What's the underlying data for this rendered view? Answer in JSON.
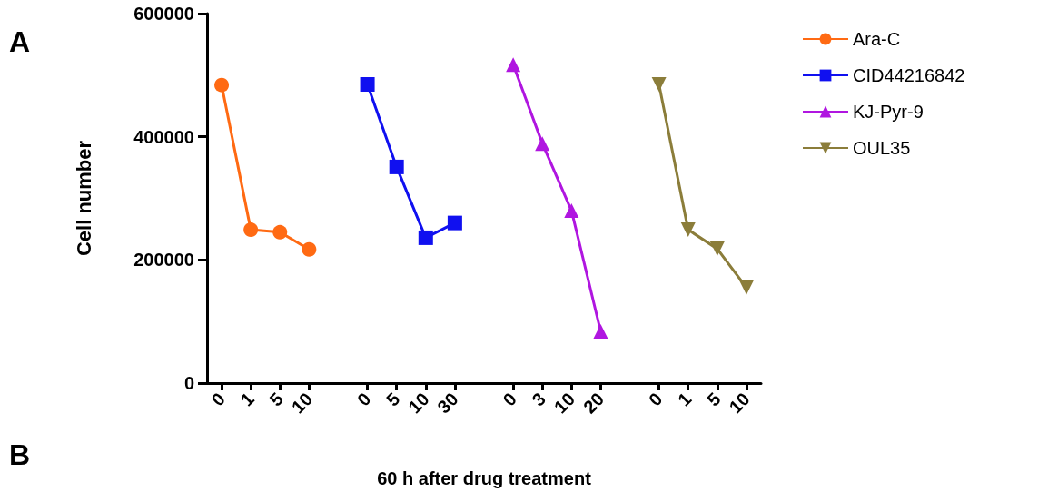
{
  "chart_data": {
    "type": "line",
    "xlabel": "60 h after drug treatment",
    "ylabel": "Cell number",
    "categories": [
      "0",
      "1",
      "5",
      "10",
      null,
      "0",
      "5",
      "10",
      "30",
      null,
      "0",
      "3",
      "10",
      "20",
      null,
      "0",
      "1",
      "5",
      "10"
    ],
    "series": [
      {
        "name": "Ara-C",
        "color": "#ff6a13",
        "marker": "circle",
        "values": [
          484000,
          249000,
          245000,
          217000,
          null,
          null,
          null,
          null,
          null,
          null,
          null,
          null,
          null,
          null,
          null,
          null,
          null,
          null,
          null
        ]
      },
      {
        "name": "CID44216842",
        "color": "#1010f0",
        "marker": "square",
        "values": [
          null,
          null,
          null,
          null,
          null,
          485000,
          351000,
          236000,
          260000,
          null,
          null,
          null,
          null,
          null,
          null,
          null,
          null,
          null,
          null
        ]
      },
      {
        "name": "KJ-Pyr-9",
        "color": "#b016e0",
        "marker": "triangle",
        "values": [
          null,
          null,
          null,
          null,
          null,
          null,
          null,
          null,
          null,
          null,
          517000,
          389000,
          280000,
          84000,
          null,
          null,
          null,
          null,
          null
        ]
      },
      {
        "name": "OUL35",
        "color": "#8b7d3a",
        "marker": "triangle-down",
        "values": [
          null,
          null,
          null,
          null,
          null,
          null,
          null,
          null,
          null,
          null,
          null,
          null,
          null,
          null,
          null,
          485000,
          249000,
          218000,
          155000
        ]
      }
    ],
    "ylim": [
      0,
      600000
    ],
    "yticks": [
      0,
      200000,
      400000,
      600000
    ],
    "grid": false,
    "legend": "top right",
    "line_style": "solid",
    "annotations": [
      "A",
      "B"
    ]
  }
}
